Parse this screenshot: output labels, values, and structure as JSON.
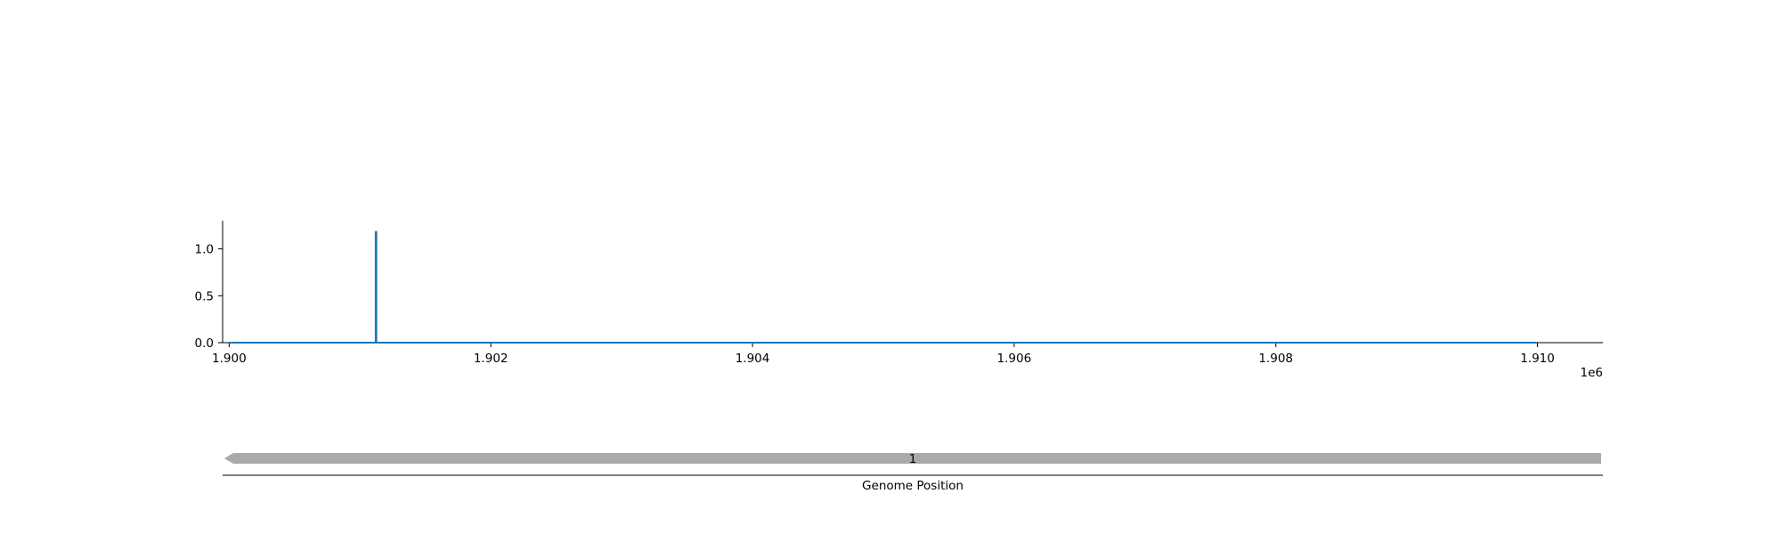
{
  "chart_data": {
    "type": "line",
    "x_offset_label": "1e6",
    "xlim": [
      1899950,
      1910500
    ],
    "ylim": [
      0,
      1.3
    ],
    "x_ticks": [
      {
        "value": 1900000,
        "label": "1.900"
      },
      {
        "value": 1902000,
        "label": "1.902"
      },
      {
        "value": 1904000,
        "label": "1.904"
      },
      {
        "value": 1906000,
        "label": "1.906"
      },
      {
        "value": 1908000,
        "label": "1.908"
      },
      {
        "value": 1910000,
        "label": "1.910"
      }
    ],
    "y_ticks": [
      {
        "value": 0.0,
        "label": "0.0"
      },
      {
        "value": 0.5,
        "label": "0.5"
      },
      {
        "value": 1.0,
        "label": "1.0"
      }
    ],
    "series": [
      {
        "color": "#1f77b4",
        "points": [
          [
            1900000,
            0
          ],
          [
            1901120,
            0
          ],
          [
            1901120,
            1.18
          ],
          [
            1901125,
            1.18
          ],
          [
            1901125,
            0
          ],
          [
            1910000,
            0
          ]
        ]
      }
    ],
    "grid": false,
    "track": {
      "xlabel": "Genome Position",
      "features": [
        {
          "label": "1",
          "start": 1900000,
          "end": 1910500,
          "strand": "-",
          "color": "#aaaaaa"
        }
      ]
    }
  }
}
